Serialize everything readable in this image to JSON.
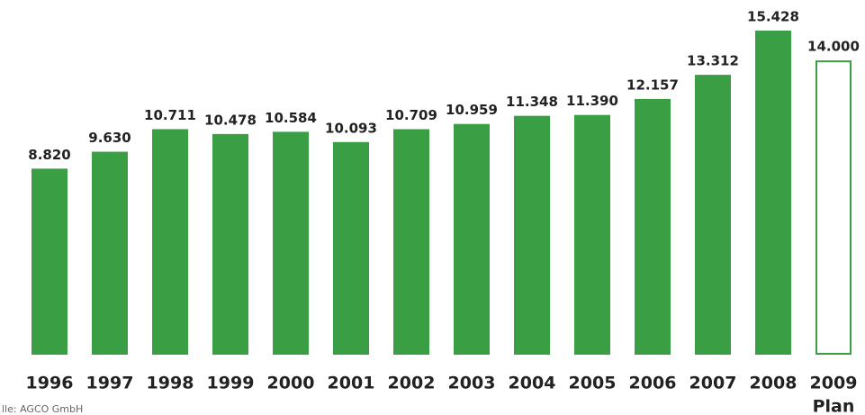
{
  "chart_data": {
    "type": "bar",
    "categories": [
      "1996",
      "1997",
      "1998",
      "1999",
      "2000",
      "2001",
      "2002",
      "2003",
      "2004",
      "2005",
      "2006",
      "2007",
      "2008",
      "2009"
    ],
    "values": [
      8820,
      9630,
      10711,
      10478,
      10584,
      10093,
      10709,
      10959,
      11348,
      11390,
      12157,
      13312,
      15428,
      14000
    ],
    "value_labels": [
      "8.820",
      "9.630",
      "10.711",
      "10.478",
      "10.584",
      "10.093",
      "10.709",
      "10.959",
      "11.348",
      "11.390",
      "12.157",
      "13.312",
      "15.428",
      "14.000"
    ],
    "color": "#3a9e45",
    "bar_fills": [
      "#3a9e45",
      "#3a9e45",
      "#3a9e45",
      "#3a9e45",
      "#3a9e45",
      "#3a9e45",
      "#3a9e45",
      "#3a9e45",
      "#3a9e45",
      "#3a9e45",
      "#3a9e45",
      "#3a9e45",
      "#3a9e45",
      "#ffffff"
    ],
    "plan_label": "Plan",
    "source": "lle: AGCO GmbH"
  }
}
